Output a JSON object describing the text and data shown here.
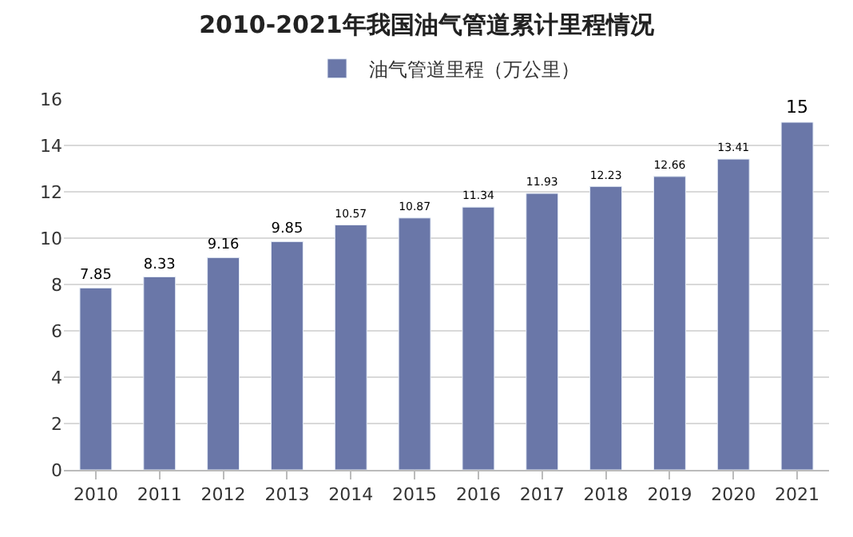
{
  "chart_data": {
    "type": "bar",
    "title": "2010-2021年我国油气管道累计里程情况",
    "categories": [
      "2010",
      "2011",
      "2012",
      "2013",
      "2014",
      "2015",
      "2016",
      "2017",
      "2018",
      "2019",
      "2020",
      "2021"
    ],
    "series": [
      {
        "name": "油气管道里程（万公里）",
        "color": "#6a77a8",
        "values": [
          7.85,
          8.33,
          9.16,
          9.85,
          10.57,
          10.87,
          11.34,
          11.93,
          12.23,
          12.66,
          13.41,
          15
        ]
      }
    ],
    "ylim": [
      0,
      16
    ],
    "yticks": [
      0,
      2,
      4,
      6,
      8,
      10,
      12,
      14,
      16
    ],
    "grid": "y",
    "legend": "top",
    "data_labels": true
  }
}
